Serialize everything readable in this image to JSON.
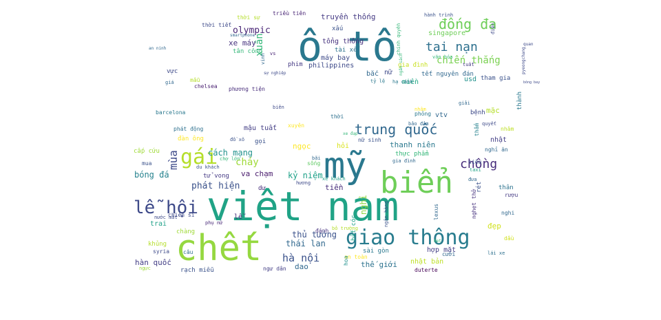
{
  "words": [
    {
      "text": "việt nam",
      "color": "#20a386"
    },
    {
      "text": "ô tô",
      "color": "#2a788e"
    },
    {
      "text": "mỹ",
      "color": "#2a788e"
    },
    {
      "text": "chết",
      "color": "#95d840"
    },
    {
      "text": "biển",
      "color": "#6ece58"
    },
    {
      "text": "giao thông",
      "color": "#287c8e"
    },
    {
      "text": "gái",
      "color": "#b5de2b"
    },
    {
      "text": "trung quốc",
      "color": "#31688e"
    },
    {
      "text": "lễ hội",
      "color": "#3e4a89"
    },
    {
      "text": "đống đa",
      "color": "#6ece58"
    },
    {
      "text": "tai nạn",
      "color": "#2d708e"
    },
    {
      "text": "chồng",
      "color": "#472d7b"
    },
    {
      "text": "hà nội",
      "color": "#3b528b"
    },
    {
      "text": "mùa",
      "color": "#3e4a89"
    },
    {
      "text": "xuân",
      "color": "#35b779"
    },
    {
      "text": "chiến thắng",
      "color": "#7ad151"
    },
    {
      "text": "olympic",
      "color": "#482475"
    },
    {
      "text": "phát hiện",
      "color": "#3b528b"
    },
    {
      "text": "cách mạng",
      "color": "#21918c"
    },
    {
      "text": "thái lan",
      "color": "#31688e"
    },
    {
      "text": "bóng đá",
      "color": "#26828e"
    },
    {
      "text": "xe máy",
      "color": "#46327e"
    },
    {
      "text": "hàn quốc",
      "color": "#433e85"
    },
    {
      "text": "thủ tướng",
      "color": "#3b528b"
    },
    {
      "text": "cháy",
      "color": "#a0da39"
    },
    {
      "text": "ngọc",
      "color": "#fde725"
    },
    {
      "text": "kỷ niệm",
      "color": "#1fa188"
    },
    {
      "text": "đẹp",
      "color": "#d0e11c"
    },
    {
      "text": "tiền",
      "color": "#472d7b"
    },
    {
      "text": "trai",
      "color": "#1fa188"
    },
    {
      "text": "mặc",
      "color": "#b5de2b"
    },
    {
      "text": "thanh niên",
      "color": "#2a788e"
    },
    {
      "text": "truyền thống",
      "color": "#443983"
    },
    {
      "text": "máy bay",
      "color": "#3e4a89"
    },
    {
      "text": "philippines",
      "color": "#3e4a89"
    },
    {
      "text": "tổng thống",
      "color": "#46327e"
    },
    {
      "text": "singapore",
      "color": "#6ece58"
    },
    {
      "text": "nghỉ",
      "color": "#90d743"
    },
    {
      "text": "va chạm",
      "color": "#481a6c"
    },
    {
      "text": "dao",
      "color": "#31688e"
    },
    {
      "text": "thế giới",
      "color": "#2c728e"
    },
    {
      "text": "nhật bản",
      "color": "#bddf26"
    },
    {
      "text": "chảy",
      "color": "#5ec962"
    },
    {
      "text": "tết nguyên đán",
      "color": "#31688e"
    },
    {
      "text": "mậu tuất",
      "color": "#433e85"
    },
    {
      "text": "xe khách",
      "color": "#1f9e89"
    },
    {
      "text": "tân công",
      "color": "#35b779"
    },
    {
      "text": "thời tiết",
      "color": "#3e4a89"
    },
    {
      "text": "thời sự",
      "color": "#b5de2b"
    },
    {
      "text": "triều tiên",
      "color": "#482475"
    },
    {
      "text": "xấu",
      "color": "#3b528b"
    },
    {
      "text": "miền",
      "color": "#22a785"
    },
    {
      "text": "bắc",
      "color": "#31688e"
    },
    {
      "text": "nữ",
      "color": "#3e4a89"
    },
    {
      "text": "tài xế",
      "color": "#2c728e"
    },
    {
      "text": "phim",
      "color": "#443983"
    },
    {
      "text": "gia đình",
      "color": "#c8e020"
    },
    {
      "text": "văn hóa",
      "color": "#35b779"
    },
    {
      "text": "usd",
      "color": "#21918c"
    },
    {
      "text": "tham gia",
      "color": "#3b528b"
    },
    {
      "text": "chelsea",
      "color": "#481f70"
    },
    {
      "text": "phương tiện",
      "color": "#472d7b"
    },
    {
      "text": "barcelona",
      "color": "#2a788e"
    },
    {
      "text": "phát động",
      "color": "#2d708e"
    },
    {
      "text": "đàn ông",
      "color": "#fde725"
    },
    {
      "text": "cấp cứu",
      "color": "#a0da39"
    },
    {
      "text": "vtv",
      "color": "#31688e"
    },
    {
      "text": "bệnh",
      "color": "#3e4a89"
    },
    {
      "text": "nhật",
      "color": "#433e85"
    },
    {
      "text": "thành",
      "color": "#2a788e"
    },
    {
      "text": "nhâm",
      "color": "#bddf26"
    },
    {
      "text": "nghỉ ăn",
      "color": "#31688e"
    },
    {
      "text": "siêu",
      "color": "#3b528b"
    },
    {
      "text": "taxi",
      "color": "#20a386"
    },
    {
      "text": "thân",
      "color": "#2c728e"
    },
    {
      "text": "rượu",
      "color": "#443983"
    },
    {
      "text": "tử vong",
      "color": "#443983"
    },
    {
      "text": "dư",
      "color": "#472d7b"
    },
    {
      "text": "gọi",
      "color": "#3b528b"
    },
    {
      "text": "sống",
      "color": "#5ec962"
    },
    {
      "text": "bãi",
      "color": "#31688e"
    },
    {
      "text": "chiến sĩ",
      "color": "#3e4a89"
    },
    {
      "text": "lễ",
      "color": "#472d7b"
    },
    {
      "text": "khủng",
      "color": "#b5de2b"
    },
    {
      "text": "syria",
      "color": "#3e4a89"
    },
    {
      "text": "chàng",
      "color": "#a0da39"
    },
    {
      "text": "câu",
      "color": "#2d708e"
    },
    {
      "text": "rạch miễu",
      "color": "#3b528b"
    },
    {
      "text": "ngư dân",
      "color": "#433e85"
    },
    {
      "text": "duterte",
      "color": "#440154"
    },
    {
      "text": "hợp mặt",
      "color": "#433e85"
    },
    {
      "text": "sài gòn",
      "color": "#2a788e"
    },
    {
      "text": "cưới",
      "color": "#31688e"
    },
    {
      "text": "dầu",
      "color": "#d0e11c"
    },
    {
      "text": "lái xe",
      "color": "#2d708e"
    },
    {
      "text": "nghi",
      "color": "#31688e"
    },
    {
      "text": "đánh",
      "color": "#46327e"
    },
    {
      "text": "an toàn",
      "color": "#fde725"
    },
    {
      "text": "gia đình",
      "color": "#31688e"
    },
    {
      "text": "thực phẩm",
      "color": "#35b779"
    },
    {
      "text": "nước mắt",
      "color": "#3e4a89"
    },
    {
      "text": "phụ nữ",
      "color": "#482878"
    },
    {
      "text": "mua",
      "color": "#3b528b"
    },
    {
      "text": "vực",
      "color": "#3e4a89"
    },
    {
      "text": "mẫu",
      "color": "#b5de2b"
    },
    {
      "text": "giá",
      "color": "#31688e"
    },
    {
      "text": "hương",
      "color": "#3e4a89"
    },
    {
      "text": "chợ lớn",
      "color": "#35b779"
    },
    {
      "text": "du khách",
      "color": "#3b528b"
    },
    {
      "text": "bỏ trường",
      "color": "#b5de2b"
    },
    {
      "text": "ngân hàng",
      "color": "#3b528b"
    },
    {
      "text": "phỏng",
      "color": "#2a788e"
    },
    {
      "text": "giải",
      "color": "#31688e"
    },
    {
      "text": "quyết",
      "color": "#3e4a89"
    },
    {
      "text": "nhâm",
      "color": "#fde725"
    },
    {
      "text": "thẩm",
      "color": "#26828e"
    },
    {
      "text": "đưa",
      "color": "#31688e"
    },
    {
      "text": "hoa",
      "color": "#21918c"
    },
    {
      "text": "bắt cóc",
      "color": "#1fa188"
    },
    {
      "text": "rét",
      "color": "#3b528b"
    },
    {
      "text": "nghẹt thở",
      "color": "#46327e"
    },
    {
      "text": "lexus",
      "color": "#31688e"
    },
    {
      "text": "xuyên",
      "color": "#fde725"
    },
    {
      "text": "chính quyền",
      "color": "#35b779"
    },
    {
      "text": "hành trình",
      "color": "#3b528b"
    },
    {
      "text": "vinh",
      "color": "#31688e"
    },
    {
      "text": "smartphone",
      "color": "#31688e"
    },
    {
      "text": "vs",
      "color": "#482475"
    },
    {
      "text": "điện",
      "color": "#3e4a89"
    },
    {
      "text": "sự nghiệp",
      "color": "#3e4a89"
    },
    {
      "text": "hạ cánh",
      "color": "#2a788e"
    },
    {
      "text": "tỷ lệ",
      "color": "#2a788e"
    },
    {
      "text": "tuất",
      "color": "#443983"
    },
    {
      "text": "đồ xô",
      "color": "#3b528b"
    },
    {
      "text": "biên",
      "color": "#3e4a89"
    },
    {
      "text": "thời",
      "color": "#2d708e"
    },
    {
      "text": "bảo đảm",
      "color": "#31688e"
    },
    {
      "text": "nữ sinh",
      "color": "#3b528b"
    },
    {
      "text": "hỏi",
      "color": "#d8e219"
    },
    {
      "text": "xe đạp",
      "color": "#35b779"
    },
    {
      "text": "an ninh",
      "color": "#31688e"
    },
    {
      "text": "bông bay",
      "color": "#3e4a89"
    },
    {
      "text": "pyeongchang",
      "color": "#3e4a89"
    },
    {
      "text": "quan",
      "color": "#3e4a89"
    },
    {
      "text": "đẹt",
      "color": "#35b779"
    },
    {
      "text": "ngực",
      "color": "#a0da39"
    },
    {
      "text": "ngân sách",
      "color": "#35b779"
    }
  ]
}
